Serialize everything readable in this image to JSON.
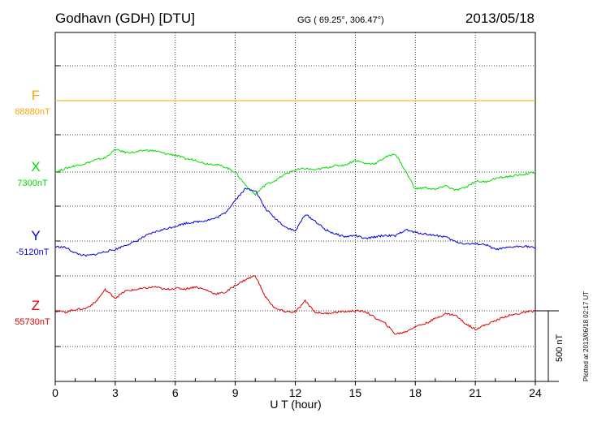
{
  "header": {
    "station": "Godhavn (GDH)  [DTU]",
    "coords": "GG ( 69.25°, 306.47°)",
    "date": "2013/05/18"
  },
  "footer_note": "Plotted at 2013/06/18 02:17 UT",
  "scale_bar_label": "500 nT",
  "colors": {
    "F": "#ffa500",
    "X": "#00dd00",
    "Y": "#0000dd",
    "Z": "#dd0000",
    "axis": "#000000"
  },
  "chart_data": {
    "type": "line",
    "title": "",
    "xlabel": "U T (hour)",
    "ylabel": "",
    "xlim": [
      0,
      24
    ],
    "x_ticks": [
      0,
      3,
      6,
      9,
      12,
      15,
      18,
      21,
      24
    ],
    "x_tick_labels": [
      "0",
      "3",
      "6",
      "9",
      "12",
      "15",
      "18",
      "21",
      "24"
    ],
    "grid": true,
    "scale_bar_nT": 500,
    "series": [
      {
        "name": "F",
        "baseline_label": "88880nT",
        "baseline_nT": 88880,
        "x": [
          0,
          24
        ],
        "y": [
          88880,
          88880
        ]
      },
      {
        "name": "X",
        "baseline_label": "7300nT",
        "baseline_nT": 7300,
        "x": [
          0,
          0.5,
          1,
          1.5,
          2,
          2.5,
          3,
          3.5,
          4,
          4.5,
          5,
          5.5,
          6,
          6.5,
          7,
          7.5,
          8,
          8.5,
          9,
          9.5,
          10,
          10.5,
          11,
          11.5,
          12,
          12.5,
          13,
          13.5,
          14,
          14.5,
          15,
          15.5,
          16,
          16.5,
          17,
          17.5,
          18,
          18.5,
          19,
          19.5,
          20,
          20.5,
          21,
          21.5,
          22,
          22.5,
          23,
          23.5,
          24
        ],
        "y": [
          7300,
          7325,
          7345,
          7360,
          7385,
          7400,
          7460,
          7440,
          7440,
          7455,
          7450,
          7430,
          7420,
          7395,
          7385,
          7360,
          7355,
          7335,
          7300,
          7210,
          7140,
          7210,
          7240,
          7285,
          7315,
          7325,
          7315,
          7330,
          7345,
          7350,
          7385,
          7360,
          7360,
          7405,
          7430,
          7310,
          7180,
          7190,
          7175,
          7205,
          7170,
          7190,
          7235,
          7230,
          7255,
          7265,
          7275,
          7285,
          7300
        ]
      },
      {
        "name": "Y",
        "baseline_label": "-5120nT",
        "baseline_nT": -5120,
        "x": [
          0,
          0.5,
          1,
          1.5,
          2,
          2.5,
          3,
          3.5,
          4,
          4.5,
          5,
          5.5,
          6,
          6.5,
          7,
          7.5,
          8,
          8.5,
          9,
          9.5,
          10,
          10.5,
          11,
          11.5,
          12,
          12.5,
          13,
          13.5,
          14,
          14.5,
          15,
          15.5,
          16,
          16.5,
          17,
          17.5,
          18,
          18.5,
          19,
          19.5,
          20,
          20.5,
          21,
          21.5,
          22,
          22.5,
          23,
          23.5,
          24
        ],
        "y": [
          -5160,
          -5165,
          -5205,
          -5225,
          -5215,
          -5195,
          -5180,
          -5150,
          -5125,
          -5085,
          -5055,
          -5035,
          -5015,
          -4995,
          -4985,
          -4975,
          -4960,
          -4920,
          -4830,
          -4750,
          -4760,
          -4890,
          -4960,
          -5020,
          -5050,
          -4930,
          -4980,
          -5040,
          -5070,
          -5090,
          -5080,
          -5105,
          -5090,
          -5080,
          -5085,
          -5040,
          -5060,
          -5070,
          -5080,
          -5090,
          -5125,
          -5140,
          -5140,
          -5145,
          -5180,
          -5170,
          -5160,
          -5155,
          -5170
        ]
      },
      {
        "name": "Z",
        "baseline_label": "55730nT",
        "baseline_nT": 55730,
        "x": [
          0,
          0.5,
          1,
          1.5,
          2,
          2.5,
          3,
          3.5,
          4,
          4.5,
          5,
          5.5,
          6,
          6.5,
          7,
          7.5,
          8,
          8.5,
          9,
          9.5,
          10,
          10.5,
          11,
          11.5,
          12,
          12.5,
          13,
          13.5,
          14,
          14.5,
          15,
          15.5,
          16,
          16.5,
          17,
          17.5,
          18,
          18.5,
          19,
          19.5,
          20,
          20.5,
          21,
          21.5,
          22,
          22.5,
          23,
          23.5,
          24
        ],
        "y": [
          55730,
          55720,
          55740,
          55745,
          55790,
          55880,
          55820,
          55870,
          55880,
          55890,
          55900,
          55880,
          55890,
          55885,
          55900,
          55880,
          55850,
          55860,
          55910,
          55950,
          55980,
          55830,
          55745,
          55725,
          55720,
          55800,
          55720,
          55710,
          55720,
          55725,
          55730,
          55725,
          55680,
          55640,
          55565,
          55580,
          55620,
          55640,
          55675,
          55710,
          55700,
          55640,
          55600,
          55630,
          55660,
          55690,
          55705,
          55720,
          55730
        ]
      }
    ]
  }
}
